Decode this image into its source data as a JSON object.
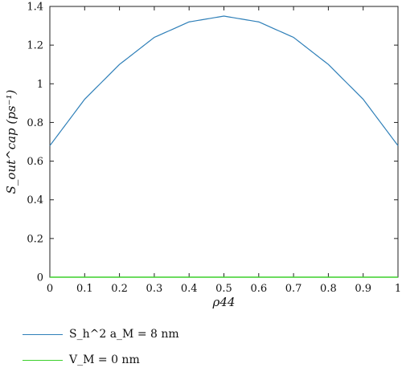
{
  "chart_data": {
    "type": "line",
    "x_label": "ρ44",
    "y_label": "S_out^cap (ps⁻¹)",
    "xlim": [
      0,
      1
    ],
    "ylim": [
      0,
      1.4
    ],
    "x_ticks": [
      "0",
      "0.1",
      "0.2",
      "0.3",
      "0.4",
      "0.5",
      "0.6",
      "0.7",
      "0.8",
      "0.9",
      "1"
    ],
    "y_ticks": [
      "0",
      "0.2",
      "0.4",
      "0.6",
      "0.8",
      "1",
      "1.2",
      "1.4"
    ],
    "grid": false,
    "legend_position": "bottom-left",
    "series": [
      {
        "name": "S_h^2 a_M = 8 nm",
        "color": "#2e7fb8",
        "x": [
          0,
          0.1,
          0.2,
          0.3,
          0.4,
          0.5,
          0.6,
          0.7,
          0.8,
          0.9,
          1
        ],
        "y": [
          0.68,
          0.92,
          1.1,
          1.24,
          1.32,
          1.35,
          1.32,
          1.24,
          1.1,
          0.92,
          0.68
        ]
      },
      {
        "name": "V_M = 0 nm",
        "color": "#3ccf2a",
        "x": [
          0,
          0.1,
          0.2,
          0.3,
          0.4,
          0.5,
          0.6,
          0.7,
          0.8,
          0.9,
          1
        ],
        "y": [
          0,
          0,
          0,
          0,
          0,
          0,
          0,
          0,
          0,
          0,
          0
        ]
      }
    ]
  }
}
